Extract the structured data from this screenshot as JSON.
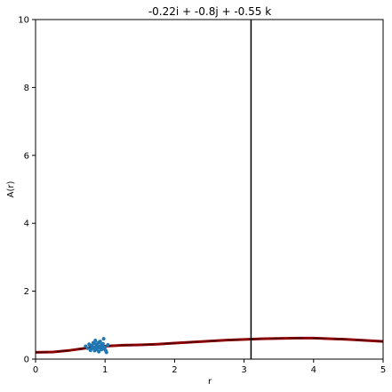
{
  "chart_data": {
    "type": "line",
    "title": "-0.22i + -0.8j + -0.55 k",
    "xlabel": "r",
    "ylabel": "A(r)",
    "xlim": [
      0,
      5
    ],
    "ylim": [
      0,
      10
    ],
    "xticks": [
      "0",
      "1",
      "2",
      "3",
      "4",
      "5"
    ],
    "yticks": [
      "0",
      "2",
      "4",
      "6",
      "8",
      "10"
    ],
    "grid": false,
    "vline_x": 3.1,
    "colors": {
      "curve": "#8b0000",
      "scatter": "#1f77b4",
      "vline": "#000000"
    },
    "curve": {
      "x": [
        0,
        0.25,
        0.5,
        0.75,
        1.0,
        1.25,
        1.5,
        1.75,
        2.0,
        2.25,
        2.5,
        2.75,
        3.0,
        3.25,
        3.5,
        3.75,
        4.0,
        4.25,
        4.5,
        4.75,
        5.0
      ],
      "y": [
        0.2,
        0.21,
        0.26,
        0.33,
        0.38,
        0.41,
        0.42,
        0.44,
        0.47,
        0.5,
        0.53,
        0.56,
        0.58,
        0.6,
        0.61,
        0.62,
        0.62,
        0.6,
        0.58,
        0.55,
        0.52
      ]
    },
    "scatter": {
      "x": [
        0.72,
        0.78,
        0.8,
        0.83,
        0.85,
        0.86,
        0.88,
        0.9,
        0.92,
        0.95,
        0.97,
        1.0,
        1.02,
        0.75,
        0.82,
        0.87,
        0.91,
        0.93,
        0.96,
        0.99,
        1.04,
        0.79,
        0.84,
        0.89,
        0.94,
        0.98,
        1.01,
        0.81,
        0.86,
        0.9,
        0.95,
        0.88,
        0.92,
        0.77,
        0.85,
        0.97
      ],
      "y": [
        0.38,
        0.42,
        0.3,
        0.48,
        0.25,
        0.55,
        0.4,
        0.33,
        0.5,
        0.28,
        0.45,
        0.35,
        0.2,
        0.32,
        0.36,
        0.44,
        0.22,
        0.52,
        0.38,
        0.3,
        0.42,
        0.26,
        0.46,
        0.36,
        0.3,
        0.6,
        0.25,
        0.4,
        0.34,
        0.48,
        0.42,
        0.28,
        0.38,
        0.44,
        0.3,
        0.36
      ]
    }
  }
}
